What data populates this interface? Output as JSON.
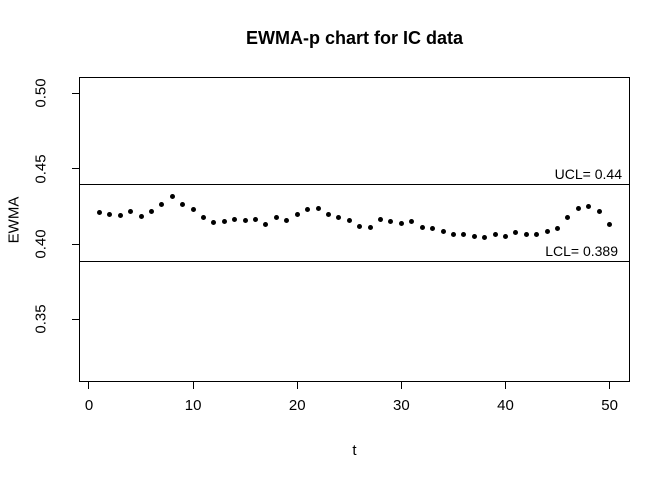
{
  "chart_data": {
    "type": "scatter",
    "title": "EWMA-p chart for IC data",
    "xlabel": "t",
    "ylabel": "EWMA",
    "x_ticks": [
      0,
      10,
      20,
      30,
      40,
      50
    ],
    "x_tick_labels": [
      "0",
      "10",
      "20",
      "30",
      "40",
      "50"
    ],
    "y_ticks": [
      0.35,
      0.4,
      0.45,
      0.5
    ],
    "y_tick_labels": [
      "0.35",
      "0.40",
      "0.45",
      "0.50"
    ],
    "xlim": [
      -0.96,
      51.96
    ],
    "ylim": [
      0.3085,
      0.5109
    ],
    "grid": false,
    "legend": "none",
    "point_color": "#000000",
    "control_limits": {
      "ucl": {
        "label": "UCL= 0.44",
        "value": 0.44
      },
      "lcl": {
        "label": "LCL= 0.389",
        "value": 0.389
      }
    },
    "x": [
      1,
      2,
      3,
      4,
      5,
      6,
      7,
      8,
      9,
      10,
      11,
      12,
      13,
      14,
      15,
      16,
      17,
      18,
      19,
      20,
      21,
      22,
      23,
      24,
      25,
      26,
      27,
      28,
      29,
      30,
      31,
      32,
      33,
      34,
      35,
      36,
      37,
      38,
      39,
      40,
      41,
      42,
      43,
      44,
      45,
      46,
      47,
      48,
      49,
      50
    ],
    "series": [
      {
        "name": "EWMA",
        "values": [
          0.421,
          0.4197,
          0.4187,
          0.4214,
          0.4184,
          0.4217,
          0.4261,
          0.4313,
          0.4264,
          0.4227,
          0.4177,
          0.4142,
          0.4151,
          0.4164,
          0.4157,
          0.4162,
          0.4133,
          0.4175,
          0.416,
          0.4197,
          0.423,
          0.4235,
          0.4199,
          0.4175,
          0.4157,
          0.4119,
          0.4108,
          0.4164,
          0.4153,
          0.4135,
          0.4151,
          0.4108,
          0.4102,
          0.4086,
          0.4064,
          0.4061,
          0.4051,
          0.4042,
          0.4066,
          0.4049,
          0.4076,
          0.4064,
          0.4067,
          0.4087,
          0.4104,
          0.4175,
          0.4237,
          0.4248,
          0.4215,
          0.4131
        ]
      }
    ]
  }
}
